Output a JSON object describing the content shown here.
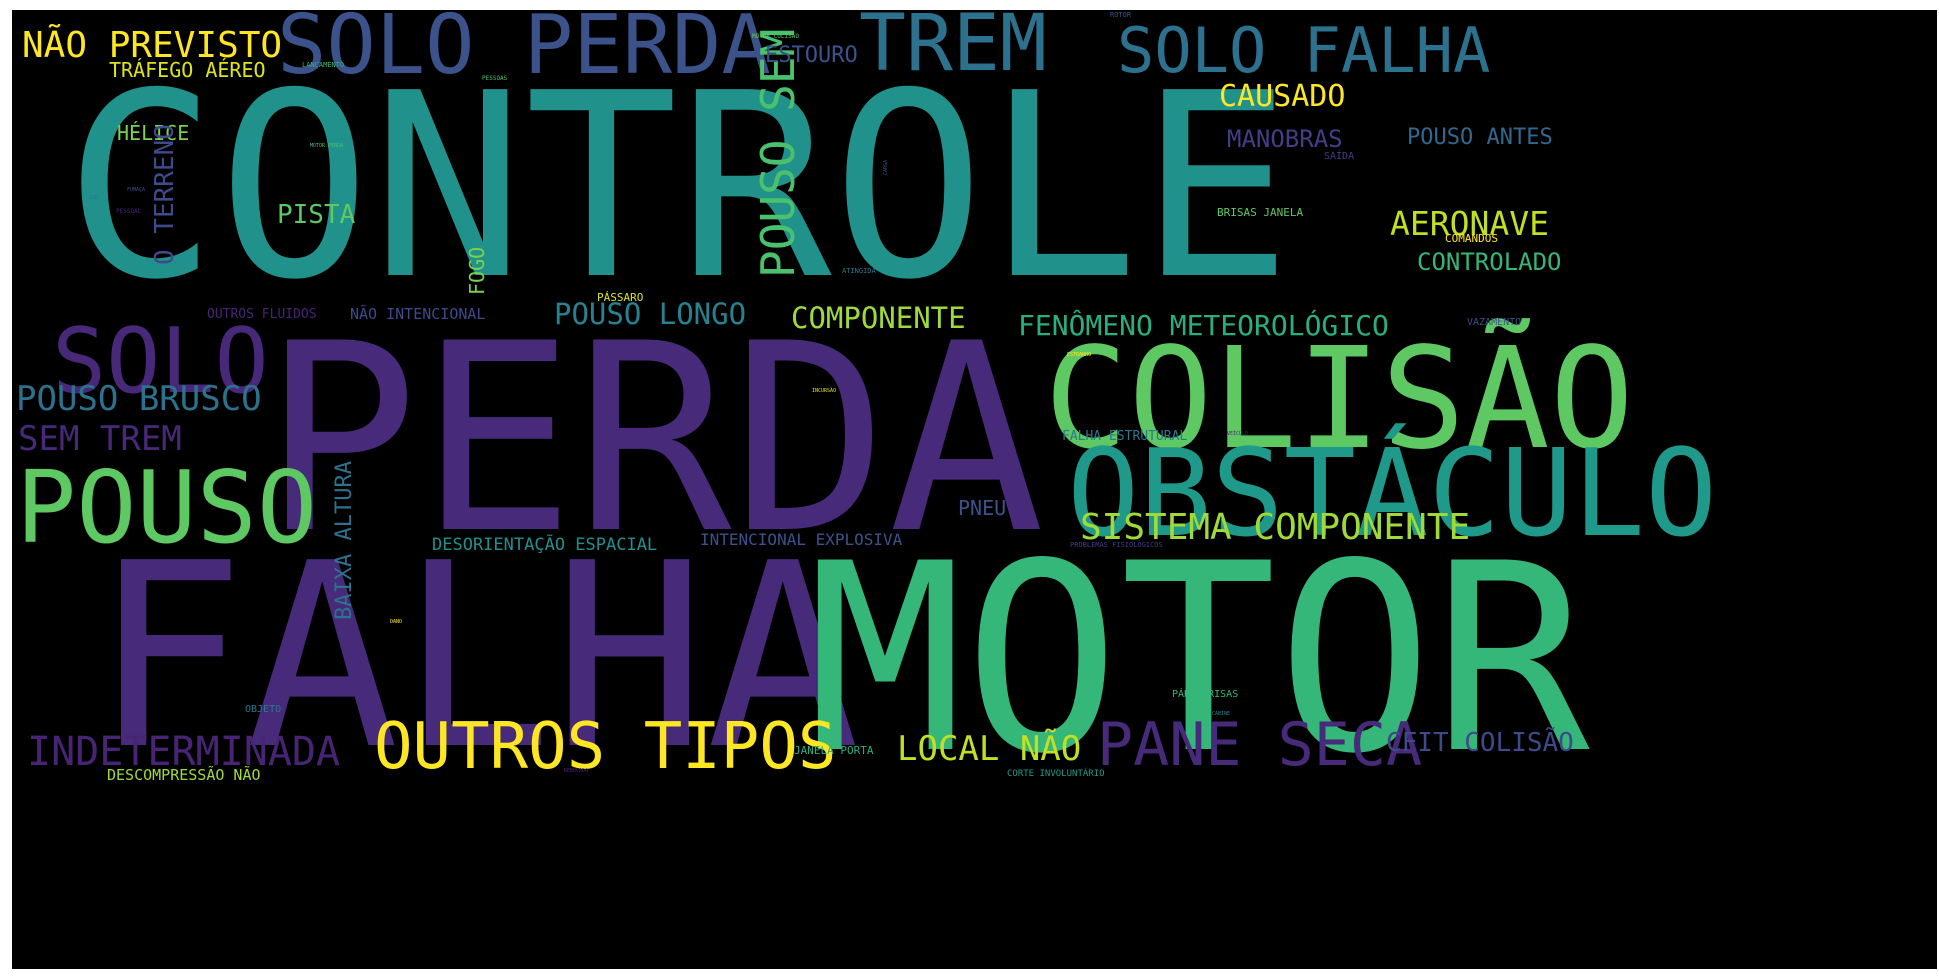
{
  "wordcloud": {
    "words": [
      {
        "text": "CONTROLE",
        "color": "#21918c"
      },
      {
        "text": "PERDA",
        "color": "#472a7a"
      },
      {
        "text": "FALHA",
        "color": "#472a7a"
      },
      {
        "text": "MOTOR",
        "color": "#35b779"
      },
      {
        "text": "COLISÃO",
        "color": "#5ec962"
      },
      {
        "text": "OBSTÁCULO",
        "color": "#1f9a8a"
      },
      {
        "text": "POUSO",
        "color": "#5ec962"
      },
      {
        "text": "SOLO",
        "color": "#482878"
      },
      {
        "text": "SOLO PERDA",
        "color": "#3b528b"
      },
      {
        "text": "TREM",
        "color": "#2c728e"
      },
      {
        "text": "SOLO FALHA",
        "color": "#2c728e"
      },
      {
        "text": "NÃO PREVISTO",
        "color": "#fde725"
      },
      {
        "text": "TRÁFEGO AÉREO",
        "color": "#dde318"
      },
      {
        "text": "OUTROS TIPOS",
        "color": "#fde725"
      },
      {
        "text": "PANE SECA",
        "color": "#472a7a"
      },
      {
        "text": "INDETERMINADA",
        "color": "#482475"
      },
      {
        "text": "SISTEMA COMPONENTE",
        "color": "#a0da39"
      },
      {
        "text": "POUSO BRUSCO",
        "color": "#2c728e"
      },
      {
        "text": "SEM TREM",
        "color": "#482878"
      },
      {
        "text": "LOCAL NÃO",
        "color": "#c2df23"
      },
      {
        "text": "CFIT COLISÃO",
        "color": "#3e4a89"
      },
      {
        "text": "FENÔMENO METEOROLÓGICO",
        "color": "#28ae80"
      },
      {
        "text": "COMPONENTE",
        "color": "#a0da39"
      },
      {
        "text": "POUSO LONGO",
        "color": "#26828e"
      },
      {
        "text": "POUSO SEM",
        "color": "#4ac16d"
      },
      {
        "text": "CAUSADO",
        "color": "#fde725"
      },
      {
        "text": "AERONAVE",
        "color": "#c2df23"
      },
      {
        "text": "CONTROLADO",
        "color": "#35b779"
      },
      {
        "text": "MANOBRAS",
        "color": "#433e85"
      },
      {
        "text": "POUSO ANTES",
        "color": "#31688e"
      },
      {
        "text": "ESTOURO",
        "color": "#3b528b"
      },
      {
        "text": "HÉLICE",
        "color": "#7ad151"
      },
      {
        "text": "PISTA",
        "color": "#5ec962"
      },
      {
        "text": "O TERRENO",
        "color": "#3e4a89"
      },
      {
        "text": "FOGO",
        "color": "#7ad151"
      },
      {
        "text": "BAIXA ALTURA",
        "color": "#2c728e"
      },
      {
        "text": "DESORIENTAÇÃO ESPACIAL",
        "color": "#218f8d"
      },
      {
        "text": "INTENCIONAL EXPLOSIVA",
        "color": "#3b528b"
      },
      {
        "text": "PNEU",
        "color": "#3b528b"
      },
      {
        "text": "DESCOMPRESSÃO NÃO",
        "color": "#a0da39"
      },
      {
        "text": "NÃO INTENCIONAL",
        "color": "#3e4a89"
      },
      {
        "text": "OUTROS FLUIDOS",
        "color": "#482475"
      },
      {
        "text": "FALHA ESTRUTURAL",
        "color": "#2a788e"
      },
      {
        "text": "BRISAS JANELA",
        "color": "#5ec962"
      },
      {
        "text": "COMANDOS",
        "color": "#fde725"
      },
      {
        "text": "JANELA PORTA",
        "color": "#28ae80"
      },
      {
        "text": "PÁSSARO",
        "color": "#dde318"
      },
      {
        "text": "OBJETO",
        "color": "#2a788e"
      },
      {
        "text": "CORTE INVOLUNTÁRIO",
        "color": "#1f9a8a"
      },
      {
        "text": "PÁRA BRISAS",
        "color": "#35b779"
      },
      {
        "text": "VAZAMENTO",
        "color": "#3b528b"
      },
      {
        "text": "SAÍDA",
        "color": "#433e85"
      },
      {
        "text": "PROBLEMAS FISIOLÓGICOS",
        "color": "#433e85"
      },
      {
        "text": "LANÇAMENTO",
        "color": "#35b779"
      },
      {
        "text": "PESSOAS",
        "color": "#4ac16d"
      },
      {
        "text": "MOTOR COLISÃO",
        "color": "#5ec962"
      },
      {
        "text": "ROTOR",
        "color": "#3b528b"
      },
      {
        "text": "MOTOR PERDA",
        "color": "#4ac16d"
      },
      {
        "text": "FUMAÇA",
        "color": "#3e4a89"
      },
      {
        "text": "FOD",
        "color": "#2c728e"
      },
      {
        "text": "PESSOAL",
        "color": "#482475"
      },
      {
        "text": "CARGA",
        "color": "#3b528b"
      },
      {
        "text": "ATINGIDA",
        "color": "#2a788e"
      },
      {
        "text": "ESTRANHO",
        "color": "#fde725"
      },
      {
        "text": "INCURSÃO",
        "color": "#dde318"
      },
      {
        "text": "VEÍCULO",
        "color": "#482878"
      },
      {
        "text": "DANO",
        "color": "#fde725"
      },
      {
        "text": "REBOCADO",
        "color": "#482475"
      },
      {
        "text": "CABINE",
        "color": "#26828e"
      }
    ]
  }
}
